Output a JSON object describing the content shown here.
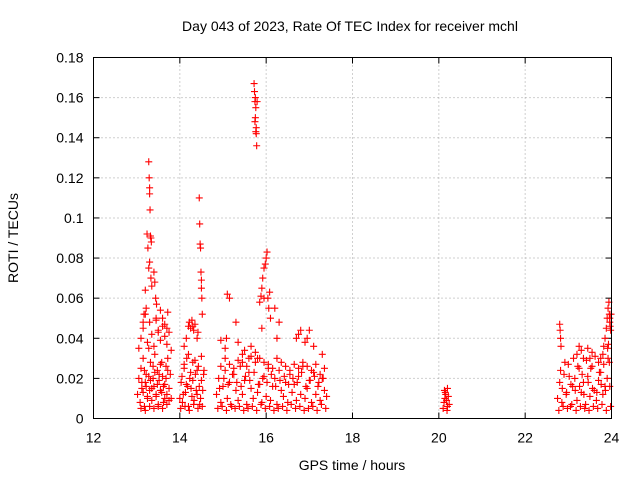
{
  "chart_data": {
    "type": "scatter",
    "title": "Day 043 of 2023, Rate Of TEC Index for receiver mchl",
    "xlabel": "GPS time / hours",
    "ylabel": "ROTI / TECUs",
    "xlim": [
      12,
      24
    ],
    "ylim": [
      0,
      0.18
    ],
    "x_ticks": [
      "12",
      "14",
      "16",
      "18",
      "20",
      "22",
      "24"
    ],
    "y_ticks": [
      "0",
      "0.02",
      "0.04",
      "0.06",
      "0.08",
      "0.1",
      "0.12",
      "0.14",
      "0.16",
      "0.18"
    ],
    "grid": true,
    "marker": "+",
    "color": "#ff0000",
    "series": [
      {
        "name": "ROTI",
        "x": [
          13.02,
          13.05,
          13.08,
          13.1,
          13.12,
          13.15,
          13.18,
          13.2,
          13.22,
          13.25,
          13.28,
          13.3,
          13.32,
          13.35,
          13.38,
          13.4,
          13.42,
          13.45,
          13.48,
          13.5,
          13.52,
          13.55,
          13.58,
          13.6,
          13.62,
          13.65,
          13.68,
          13.7,
          13.72,
          13.75,
          13.78,
          13.8,
          13.1,
          13.15,
          13.2,
          13.25,
          13.3,
          13.35,
          13.4,
          13.45,
          13.5,
          13.55,
          13.6,
          13.65,
          13.7,
          13.75,
          13.12,
          13.18,
          13.22,
          13.28,
          13.32,
          13.38,
          13.42,
          13.48,
          13.52,
          13.58,
          13.62,
          13.68,
          13.72,
          13.05,
          13.1,
          13.15,
          13.2,
          13.25,
          13.3,
          13.35,
          13.4,
          13.45,
          13.5,
          13.55,
          13.6,
          13.65,
          13.7,
          13.75,
          13.8,
          13.28,
          13.29,
          13.3,
          13.3,
          13.31,
          13.32,
          13.33,
          13.34,
          13.24,
          13.26,
          13.28,
          13.3,
          13.33,
          13.35,
          13.4,
          13.42,
          13.44,
          13.46,
          13.2,
          13.22,
          13.15,
          13.17,
          13.55,
          13.6,
          13.65,
          13.7,
          13.72,
          13.5,
          13.45,
          14.0,
          14.03,
          14.06,
          14.1,
          14.13,
          14.16,
          14.2,
          14.23,
          14.26,
          14.3,
          14.33,
          14.36,
          14.4,
          14.43,
          14.46,
          14.5,
          14.53,
          14.56,
          14.02,
          14.08,
          14.12,
          14.18,
          14.22,
          14.28,
          14.32,
          14.38,
          14.42,
          14.48,
          14.52,
          14.05,
          14.1,
          14.15,
          14.2,
          14.25,
          14.3,
          14.35,
          14.4,
          14.45,
          14.5,
          14.55,
          14.2,
          14.22,
          14.25,
          14.28,
          14.3,
          14.32,
          14.35,
          14.1,
          14.15,
          14.45,
          14.46,
          14.47,
          14.48,
          14.49,
          14.5,
          14.5,
          14.51,
          14.52,
          14.4,
          14.42,
          14.85,
          14.9,
          14.95,
          15.0,
          15.05,
          15.1,
          15.15,
          15.2,
          15.25,
          15.3,
          15.35,
          15.4,
          15.45,
          15.5,
          15.55,
          15.6,
          15.65,
          15.7,
          15.75,
          15.8,
          15.85,
          15.9,
          15.95,
          16.0,
          16.05,
          16.1,
          16.15,
          16.2,
          16.25,
          16.3,
          16.35,
          16.4,
          16.45,
          16.5,
          16.55,
          16.6,
          16.65,
          16.7,
          16.75,
          16.8,
          16.85,
          16.9,
          16.95,
          17.0,
          17.05,
          17.1,
          17.15,
          17.2,
          17.25,
          17.3,
          17.35,
          17.4,
          14.88,
          14.98,
          15.08,
          15.18,
          15.28,
          15.38,
          15.48,
          15.58,
          15.68,
          15.78,
          15.88,
          15.98,
          16.08,
          16.18,
          16.28,
          16.38,
          16.48,
          16.58,
          16.68,
          16.78,
          16.88,
          16.98,
          17.08,
          17.18,
          17.28,
          17.38,
          14.92,
          15.02,
          15.12,
          15.22,
          15.32,
          15.42,
          15.52,
          15.62,
          15.72,
          15.82,
          15.92,
          16.02,
          16.12,
          16.22,
          16.32,
          16.42,
          16.52,
          16.62,
          16.72,
          16.82,
          16.92,
          17.02,
          17.12,
          17.22,
          17.32,
          14.95,
          15.05,
          15.15,
          15.25,
          15.35,
          15.45,
          15.55,
          15.65,
          15.75,
          15.85,
          15.95,
          16.05,
          16.15,
          16.25,
          16.35,
          16.45,
          16.55,
          16.65,
          16.75,
          16.85,
          16.95,
          17.05,
          17.15,
          17.25,
          17.35,
          15.72,
          15.73,
          15.74,
          15.75,
          15.76,
          15.77,
          15.78,
          15.79,
          15.74,
          15.76,
          15.75,
          15.77,
          15.85,
          15.88,
          15.9,
          15.92,
          15.95,
          15.98,
          16.0,
          16.02,
          16.04,
          16.06,
          16.08,
          16.1,
          15.9,
          15.95,
          16.2,
          16.3,
          16.25,
          15.1,
          15.15,
          15.05,
          15.08,
          15.3,
          15.35,
          15.45,
          15.5,
          15.6,
          15.65,
          15.8,
          16.7,
          16.75,
          16.8,
          16.9,
          16.95,
          17.0,
          17.3,
          17.1,
          14.95,
          20.1,
          20.12,
          20.14,
          20.16,
          20.18,
          20.2,
          20.22,
          20.24,
          20.15,
          20.2,
          20.13,
          20.19,
          22.75,
          22.8,
          22.85,
          22.9,
          22.95,
          23.0,
          23.05,
          23.1,
          23.15,
          23.2,
          23.25,
          23.3,
          23.35,
          23.4,
          23.45,
          23.5,
          23.55,
          23.6,
          23.65,
          23.7,
          23.75,
          23.8,
          23.85,
          23.9,
          23.95,
          22.78,
          22.88,
          22.98,
          23.08,
          23.18,
          23.28,
          23.38,
          23.48,
          23.58,
          23.68,
          23.78,
          23.88,
          23.98,
          22.82,
          22.92,
          23.02,
          23.12,
          23.22,
          23.32,
          23.42,
          23.52,
          23.62,
          23.72,
          23.82,
          23.92,
          22.86,
          22.96,
          23.06,
          23.16,
          23.26,
          23.36,
          23.46,
          23.56,
          23.66,
          23.76,
          23.86,
          23.96,
          22.8,
          22.81,
          22.82,
          22.83,
          23.2,
          23.25,
          23.3,
          23.35,
          23.45,
          23.5,
          23.55,
          23.7,
          23.75,
          23.8,
          23.82,
          23.85,
          23.88,
          23.9,
          23.92,
          23.94,
          23.95,
          23.96,
          23.97,
          23.98,
          23.99,
          23.96,
          23.93,
          23.91
        ],
        "y": [
          0.012,
          0.02,
          0.008,
          0.025,
          0.015,
          0.03,
          0.006,
          0.018,
          0.022,
          0.01,
          0.035,
          0.014,
          0.028,
          0.009,
          0.02,
          0.016,
          0.032,
          0.011,
          0.024,
          0.007,
          0.019,
          0.027,
          0.013,
          0.021,
          0.008,
          0.017,
          0.026,
          0.012,
          0.03,
          0.015,
          0.022,
          0.01,
          0.005,
          0.013,
          0.004,
          0.011,
          0.006,
          0.015,
          0.005,
          0.012,
          0.006,
          0.014,
          0.005,
          0.01,
          0.007,
          0.009,
          0.018,
          0.024,
          0.016,
          0.021,
          0.019,
          0.026,
          0.023,
          0.017,
          0.022,
          0.028,
          0.016,
          0.02,
          0.024,
          0.035,
          0.04,
          0.045,
          0.052,
          0.038,
          0.048,
          0.042,
          0.036,
          0.05,
          0.044,
          0.039,
          0.046,
          0.041,
          0.037,
          0.043,
          0.034,
          0.128,
          0.12,
          0.115,
          0.112,
          0.104,
          0.091,
          0.09,
          0.088,
          0.092,
          0.085,
          0.075,
          0.078,
          0.07,
          0.066,
          0.073,
          0.068,
          0.06,
          0.057,
          0.064,
          0.055,
          0.048,
          0.052,
          0.054,
          0.05,
          0.047,
          0.045,
          0.053,
          0.043,
          0.049,
          0.01,
          0.018,
          0.008,
          0.025,
          0.013,
          0.03,
          0.006,
          0.02,
          0.015,
          0.028,
          0.009,
          0.022,
          0.012,
          0.026,
          0.007,
          0.019,
          0.014,
          0.024,
          0.005,
          0.012,
          0.006,
          0.016,
          0.004,
          0.011,
          0.007,
          0.014,
          0.005,
          0.01,
          0.006,
          0.021,
          0.027,
          0.017,
          0.032,
          0.023,
          0.019,
          0.029,
          0.024,
          0.016,
          0.031,
          0.022,
          0.046,
          0.048,
          0.045,
          0.049,
          0.046,
          0.044,
          0.047,
          0.036,
          0.04,
          0.11,
          0.097,
          0.087,
          0.085,
          0.073,
          0.065,
          0.069,
          0.06,
          0.052,
          0.04,
          0.043,
          0.012,
          0.02,
          0.008,
          0.016,
          0.024,
          0.01,
          0.018,
          0.006,
          0.022,
          0.014,
          0.009,
          0.026,
          0.012,
          0.019,
          0.007,
          0.023,
          0.015,
          0.01,
          0.028,
          0.013,
          0.017,
          0.008,
          0.021,
          0.011,
          0.025,
          0.009,
          0.016,
          0.02,
          0.007,
          0.024,
          0.014,
          0.011,
          0.018,
          0.008,
          0.022,
          0.013,
          0.017,
          0.009,
          0.021,
          0.012,
          0.026,
          0.01,
          0.015,
          0.019,
          0.008,
          0.023,
          0.012,
          0.016,
          0.009,
          0.02,
          0.014,
          0.011,
          0.005,
          0.006,
          0.004,
          0.007,
          0.005,
          0.006,
          0.004,
          0.005,
          0.006,
          0.004,
          0.007,
          0.005,
          0.006,
          0.004,
          0.005,
          0.006,
          0.004,
          0.007,
          0.005,
          0.006,
          0.004,
          0.005,
          0.006,
          0.004,
          0.007,
          0.005,
          0.015,
          0.02,
          0.017,
          0.022,
          0.018,
          0.016,
          0.021,
          0.019,
          0.023,
          0.017,
          0.02,
          0.018,
          0.022,
          0.016,
          0.019,
          0.021,
          0.017,
          0.02,
          0.018,
          0.023,
          0.016,
          0.019,
          0.021,
          0.018,
          0.02,
          0.026,
          0.03,
          0.027,
          0.025,
          0.029,
          0.028,
          0.026,
          0.031,
          0.033,
          0.03,
          0.028,
          0.027,
          0.025,
          0.03,
          0.028,
          0.026,
          0.024,
          0.027,
          0.025,
          0.028,
          0.026,
          0.024,
          0.027,
          0.022,
          0.025,
          0.167,
          0.163,
          0.158,
          0.16,
          0.143,
          0.142,
          0.136,
          0.158,
          0.148,
          0.155,
          0.15,
          0.145,
          0.058,
          0.061,
          0.065,
          0.07,
          0.075,
          0.077,
          0.08,
          0.083,
          0.06,
          0.055,
          0.063,
          0.05,
          0.045,
          0.06,
          0.055,
          0.048,
          0.04,
          0.062,
          0.06,
          0.035,
          0.04,
          0.048,
          0.038,
          0.032,
          0.034,
          0.03,
          0.036,
          0.03,
          0.04,
          0.042,
          0.044,
          0.038,
          0.04,
          0.044,
          0.032,
          0.036,
          0.039,
          0.005,
          0.008,
          0.01,
          0.012,
          0.009,
          0.015,
          0.011,
          0.007,
          0.013,
          0.006,
          0.014,
          0.004,
          0.01,
          0.018,
          0.008,
          0.022,
          0.012,
          0.027,
          0.006,
          0.016,
          0.02,
          0.009,
          0.025,
          0.013,
          0.018,
          0.007,
          0.021,
          0.011,
          0.026,
          0.014,
          0.009,
          0.019,
          0.023,
          0.012,
          0.016,
          0.02,
          0.028,
          0.004,
          0.006,
          0.005,
          0.007,
          0.004,
          0.006,
          0.005,
          0.004,
          0.006,
          0.005,
          0.007,
          0.004,
          0.006,
          0.024,
          0.028,
          0.021,
          0.03,
          0.026,
          0.022,
          0.029,
          0.025,
          0.031,
          0.023,
          0.027,
          0.03,
          0.015,
          0.013,
          0.017,
          0.014,
          0.016,
          0.012,
          0.018,
          0.015,
          0.013,
          0.017,
          0.014,
          0.016,
          0.047,
          0.044,
          0.04,
          0.036,
          0.032,
          0.036,
          0.034,
          0.03,
          0.035,
          0.03,
          0.033,
          0.028,
          0.03,
          0.032,
          0.036,
          0.04,
          0.045,
          0.05,
          0.055,
          0.058,
          0.052,
          0.05,
          0.046,
          0.044,
          0.052,
          0.048,
          0.037,
          0.035
        ]
      }
    ]
  }
}
